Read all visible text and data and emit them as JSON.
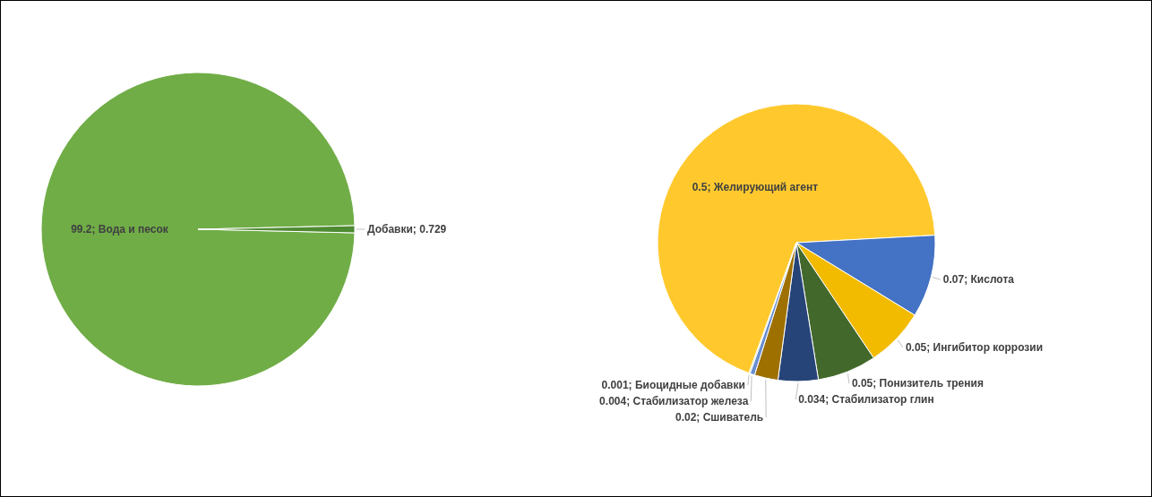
{
  "chart_data": [
    {
      "type": "pie",
      "categories": [
        "99.2; Вода и песок",
        "Добавки; 0.729"
      ],
      "values": [
        99.2,
        0.729
      ],
      "colors": [
        "#70ad47",
        "#4e8a32"
      ]
    },
    {
      "type": "pie",
      "categories": [
        "0.5; Желирующий агент",
        "0.07; Кислота",
        "0.05; Ингибитор коррозии",
        "0.05; Понизитель трения",
        "0.034; Стабилизатор глин",
        "0.02; Сшиватель",
        "0.004; Стабилизатор железа",
        "0.001; Биоцидные добавки"
      ],
      "values": [
        0.5,
        0.07,
        0.05,
        0.05,
        0.034,
        0.02,
        0.004,
        0.001
      ],
      "colors": [
        "#ffc92e",
        "#4472c4",
        "#f2bb00",
        "#43682b",
        "#264478",
        "#9e7000",
        "#698ed0",
        "#a9d18e"
      ]
    }
  ]
}
